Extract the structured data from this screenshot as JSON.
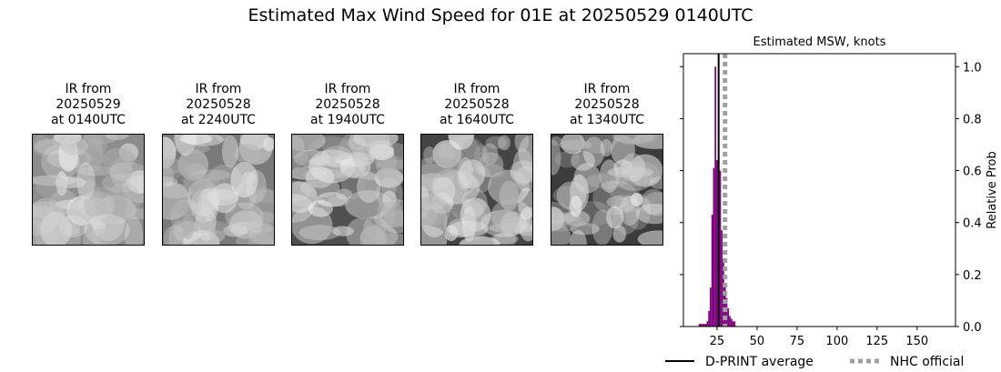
{
  "figure": {
    "title": "Estimated Max Wind Speed for 01E at 20250529 0140UTC"
  },
  "thumbnails": [
    {
      "line1": "IR from",
      "line2": "20250529",
      "line3": "at 0140UTC",
      "tone": "#8c8c8c"
    },
    {
      "line1": "IR from",
      "line2": "20250528",
      "line3": "at 2240UTC",
      "tone": "#7a7a7a"
    },
    {
      "line1": "IR from",
      "line2": "20250528",
      "line3": "at 1940UTC",
      "tone": "#505050"
    },
    {
      "line1": "IR from",
      "line2": "20250528",
      "line3": "at 1640UTC",
      "tone": "#444444"
    },
    {
      "line1": "IR from",
      "line2": "20250528",
      "line3": "at 1340UTC",
      "tone": "#3c3c3c"
    }
  ],
  "chart_data": {
    "type": "bar",
    "title": "Estimated MSW, knots",
    "ylabel": "Relative Prob",
    "xlabel": "",
    "xlim": [
      4,
      174
    ],
    "ylim": [
      0,
      1.05
    ],
    "xticks": [
      25,
      50,
      75,
      100,
      125,
      150
    ],
    "yticks": [
      0.0,
      0.2,
      0.4,
      0.6,
      0.8,
      1.0
    ],
    "y_axis_side": "right",
    "bin_width": 1,
    "histogram": [
      {
        "x": 14,
        "y": 0.01
      },
      {
        "x": 15,
        "y": 0.01
      },
      {
        "x": 16,
        "y": 0.01
      },
      {
        "x": 17,
        "y": 0.01
      },
      {
        "x": 18,
        "y": 0.01
      },
      {
        "x": 19,
        "y": 0.02
      },
      {
        "x": 20,
        "y": 0.06
      },
      {
        "x": 21,
        "y": 0.15
      },
      {
        "x": 22,
        "y": 0.43
      },
      {
        "x": 23,
        "y": 0.61
      },
      {
        "x": 24,
        "y": 1.0
      },
      {
        "x": 25,
        "y": 0.64
      },
      {
        "x": 26,
        "y": 0.65
      },
      {
        "x": 27,
        "y": 0.6
      },
      {
        "x": 28,
        "y": 0.37
      },
      {
        "x": 29,
        "y": 0.26
      },
      {
        "x": 30,
        "y": 0.16
      },
      {
        "x": 31,
        "y": 0.11
      },
      {
        "x": 32,
        "y": 0.07
      },
      {
        "x": 33,
        "y": 0.04
      },
      {
        "x": 34,
        "y": 0.03
      },
      {
        "x": 35,
        "y": 0.02
      },
      {
        "x": 36,
        "y": 0.02
      }
    ],
    "bar_color": "#800080",
    "dprint_average": 26,
    "nhc_official": 30,
    "legend": [
      {
        "label": "D-PRINT average",
        "style": "solid",
        "color": "#000000"
      },
      {
        "label": "NHC official",
        "style": "dotted",
        "color": "#a0a0a0"
      }
    ]
  }
}
